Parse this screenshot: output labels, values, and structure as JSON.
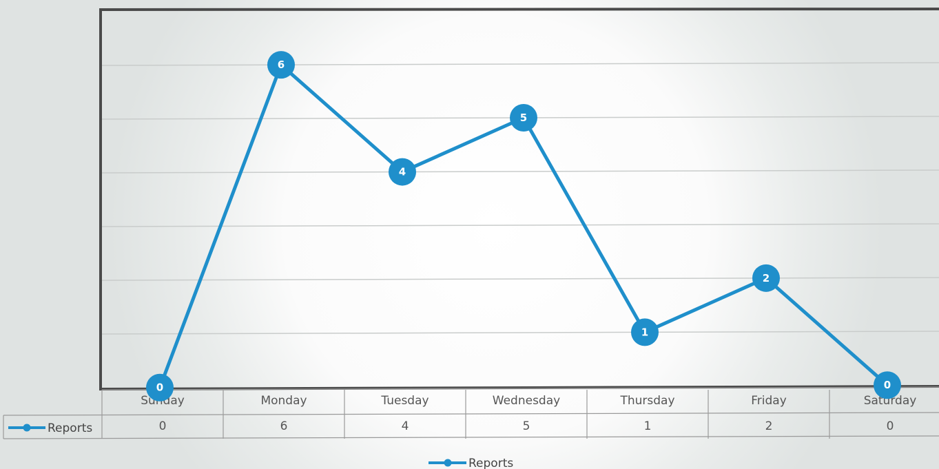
{
  "chart_data": {
    "type": "line",
    "categories": [
      "Sunday",
      "Monday",
      "Tuesday",
      "Wednesday",
      "Thursday",
      "Friday",
      "Saturday"
    ],
    "series": [
      {
        "name": "Reports",
        "values": [
          0,
          6,
          4,
          5,
          1,
          2,
          0
        ],
        "color": "#1f8fcb"
      }
    ],
    "ylim": [
      0,
      7
    ],
    "grid": true,
    "data_labels": true,
    "data_table": true,
    "legend": "bottom-center"
  }
}
